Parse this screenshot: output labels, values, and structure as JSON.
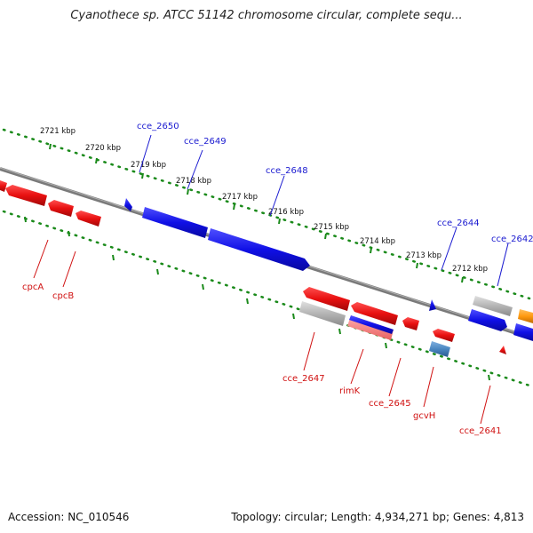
{
  "title": "Cyanothece sp. ATCC 51142 chromosome circular, complete sequ...",
  "footer": {
    "accession": "Accession: NC_010546",
    "summary": "Topology: circular; Length: 4,934,271 bp; Genes: 4,813"
  },
  "colors": {
    "forward_gene": "#1010e6",
    "reverse_gene": "#e81010",
    "upper_label": "#1a1ad0",
    "lower_label": "#d01010",
    "backbone": "#7a7a7a",
    "scale_dots": "#1a8a1a",
    "grey_gene": "#b4b4b4",
    "orange_gene": "#ff9a10",
    "steelblue_gene": "#4a86c0"
  },
  "scale_labels": [
    "2721 kbp",
    "2720 kbp",
    "2719 kbp",
    "2718 kbp",
    "2717 kbp",
    "2716 kbp",
    "2715 kbp",
    "2714 kbp",
    "2713 kbp",
    "2712 kbp"
  ],
  "upper_gene_labels": [
    "cce_2650",
    "cce_2649",
    "cce_2648",
    "cce_2644",
    "cce_2642"
  ],
  "lower_gene_labels": [
    "cpcA",
    "cpcB",
    "cce_2647",
    "rimK",
    "cce_2645",
    "gcvH",
    "cce_2641"
  ]
}
